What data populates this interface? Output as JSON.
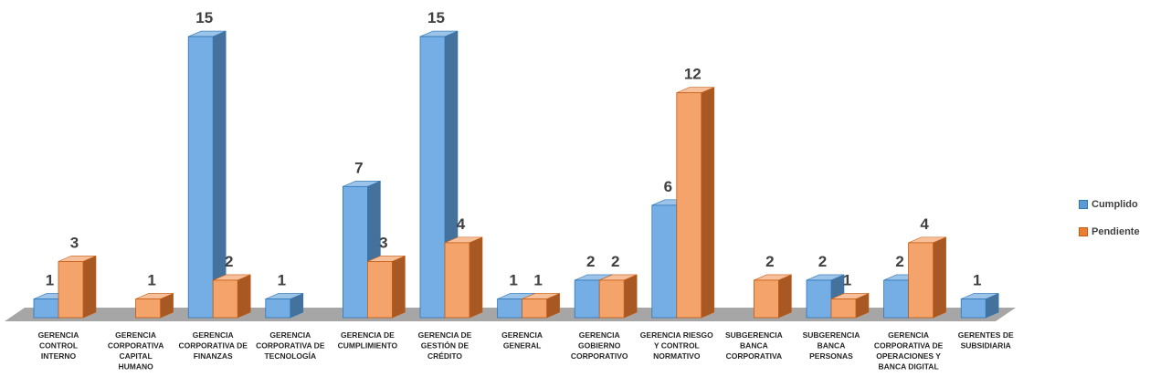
{
  "chart_data": {
    "type": "bar",
    "categories": [
      [
        "GERENCIA",
        "CONTROL",
        "INTERNO"
      ],
      [
        "GERENCIA",
        "CORPORATIVA",
        "CAPITAL",
        "HUMANO"
      ],
      [
        "GERENCIA",
        "CORPORATIVA DE",
        "FINANZAS"
      ],
      [
        "GERENCIA",
        "CORPORATIVA DE",
        "TECNOLOGÍA"
      ],
      [
        "GERENCIA DE",
        "CUMPLIMIENTO"
      ],
      [
        "GERENCIA DE",
        "GESTIÓN DE",
        "CRÉDITO"
      ],
      [
        "GERENCIA",
        "GENERAL"
      ],
      [
        "GERENCIA",
        "GOBIERNO",
        "CORPORATIVO"
      ],
      [
        "GERENCIA RIESGO",
        "Y CONTROL",
        "NORMATIVO"
      ],
      [
        "SUBGERENCIA",
        "BANCA",
        "CORPORATIVA"
      ],
      [
        "SUBGERENCIA",
        "BANCA",
        "PERSONAS"
      ],
      [
        "GERENCIA",
        "CORPORATIVA DE",
        "OPERACIONES Y",
        "BANCA DIGITAL"
      ],
      [
        "GERENTES DE",
        "SUBSIDIARIA"
      ]
    ],
    "series": [
      {
        "name": "Cumplido",
        "color": "#5b9bd5",
        "values": [
          1,
          null,
          15,
          1,
          7,
          15,
          1,
          2,
          6,
          null,
          2,
          2,
          1
        ]
      },
      {
        "name": "Pendiente",
        "color": "#ed7d31",
        "values": [
          3,
          1,
          2,
          null,
          3,
          4,
          1,
          2,
          12,
          2,
          1,
          4,
          null
        ]
      }
    ],
    "ylim": [
      0,
      15
    ],
    "legend": "right",
    "grid": false
  }
}
